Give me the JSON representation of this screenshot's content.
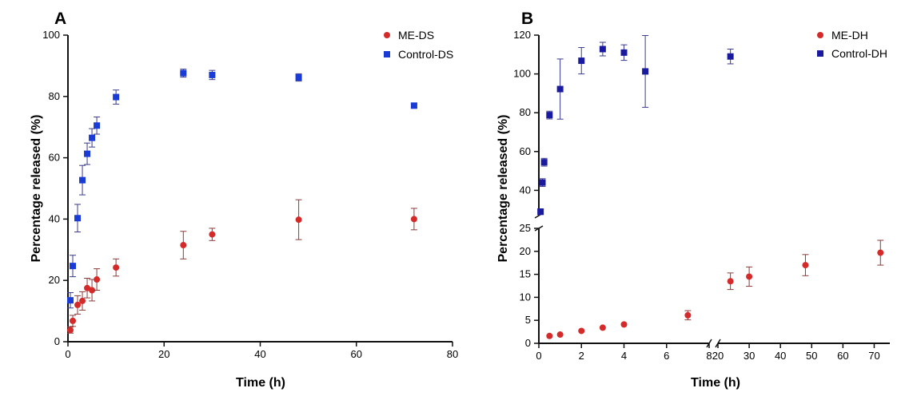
{
  "chart_data": [
    {
      "panel": "A",
      "type": "scatter",
      "xlabel": "Time (h)",
      "ylabel": "Percentage released (%)",
      "xlim": [
        0,
        80
      ],
      "ylim": [
        0,
        100
      ],
      "xticks": [
        0,
        20,
        40,
        60,
        80
      ],
      "yticks": [
        0,
        20,
        40,
        60,
        80,
        100
      ],
      "legend_position": "top-right",
      "series": [
        {
          "name": "ME-DS",
          "marker": "circle",
          "color": "#d42a2a",
          "error_color": "#8b3a3a",
          "x": [
            0.5,
            1,
            2,
            3,
            4,
            5,
            6,
            10,
            24,
            30,
            48,
            72
          ],
          "y": [
            3.8,
            6.8,
            12.0,
            13.3,
            17.5,
            16.8,
            20.3,
            24.2,
            31.5,
            35.0,
            39.8,
            40.0
          ],
          "err": [
            1.0,
            1.8,
            3.0,
            3.0,
            3.2,
            3.5,
            3.5,
            2.8,
            4.5,
            2.0,
            6.5,
            3.5
          ]
        },
        {
          "name": "Control-DS",
          "marker": "square",
          "color": "#1a3bd6",
          "error_color": "#3a3a8b",
          "x": [
            0.5,
            1,
            2,
            3,
            4,
            5,
            6,
            10,
            24,
            30,
            48,
            72
          ],
          "y": [
            13.5,
            24.7,
            40.3,
            52.7,
            61.3,
            66.5,
            70.5,
            79.8,
            87.6,
            87.0,
            86.2,
            77.0
          ],
          "err": [
            2.5,
            3.5,
            4.5,
            4.8,
            3.5,
            3.0,
            2.8,
            2.3,
            1.3,
            1.5,
            1.2,
            0.6
          ]
        }
      ]
    },
    {
      "panel": "B",
      "type": "scatter",
      "xlabel": "Time (h)",
      "ylabel": "Percentage released (%)",
      "x_segments": [
        {
          "range": [
            0,
            8
          ],
          "ticks": [
            0,
            2,
            4,
            6,
            8
          ]
        },
        {
          "range": [
            20,
            75
          ],
          "ticks": [
            20,
            30,
            40,
            50,
            60,
            70
          ]
        }
      ],
      "y_segments": [
        {
          "range": [
            0,
            25
          ],
          "ticks": [
            0,
            5,
            10,
            15,
            20,
            25
          ]
        },
        {
          "range": [
            27,
            120
          ],
          "ticks": [
            40,
            60,
            80,
            100,
            120
          ]
        }
      ],
      "legend_position": "top-right",
      "series": [
        {
          "name": "ME-DH",
          "marker": "circle",
          "color": "#d42a2a",
          "error_color": "#8b3a3a",
          "x": [
            0.5,
            1,
            2,
            3,
            4,
            7,
            24,
            30,
            48,
            72
          ],
          "y": [
            1.6,
            1.9,
            2.7,
            3.4,
            4.1,
            6.1,
            13.5,
            14.5,
            17.0,
            19.7
          ],
          "err": [
            0,
            0,
            0,
            0,
            0,
            1.0,
            1.8,
            2.1,
            2.3,
            2.7
          ]
        },
        {
          "name": "Control-DH",
          "marker": "square",
          "color": "#1a1aa0",
          "error_color": "#3a3a8b",
          "x": [
            0.08,
            0.17,
            0.25,
            0.5,
            1,
            2,
            3,
            4,
            5,
            24
          ],
          "y": [
            29.0,
            44.0,
            54.5,
            78.8,
            92.2,
            106.8,
            112.8,
            111.0,
            101.3,
            109.0
          ],
          "err": [
            1.5,
            2.0,
            2.0,
            2.0,
            15.5,
            6.8,
            3.5,
            4.0,
            18.5,
            3.8
          ]
        }
      ]
    }
  ]
}
